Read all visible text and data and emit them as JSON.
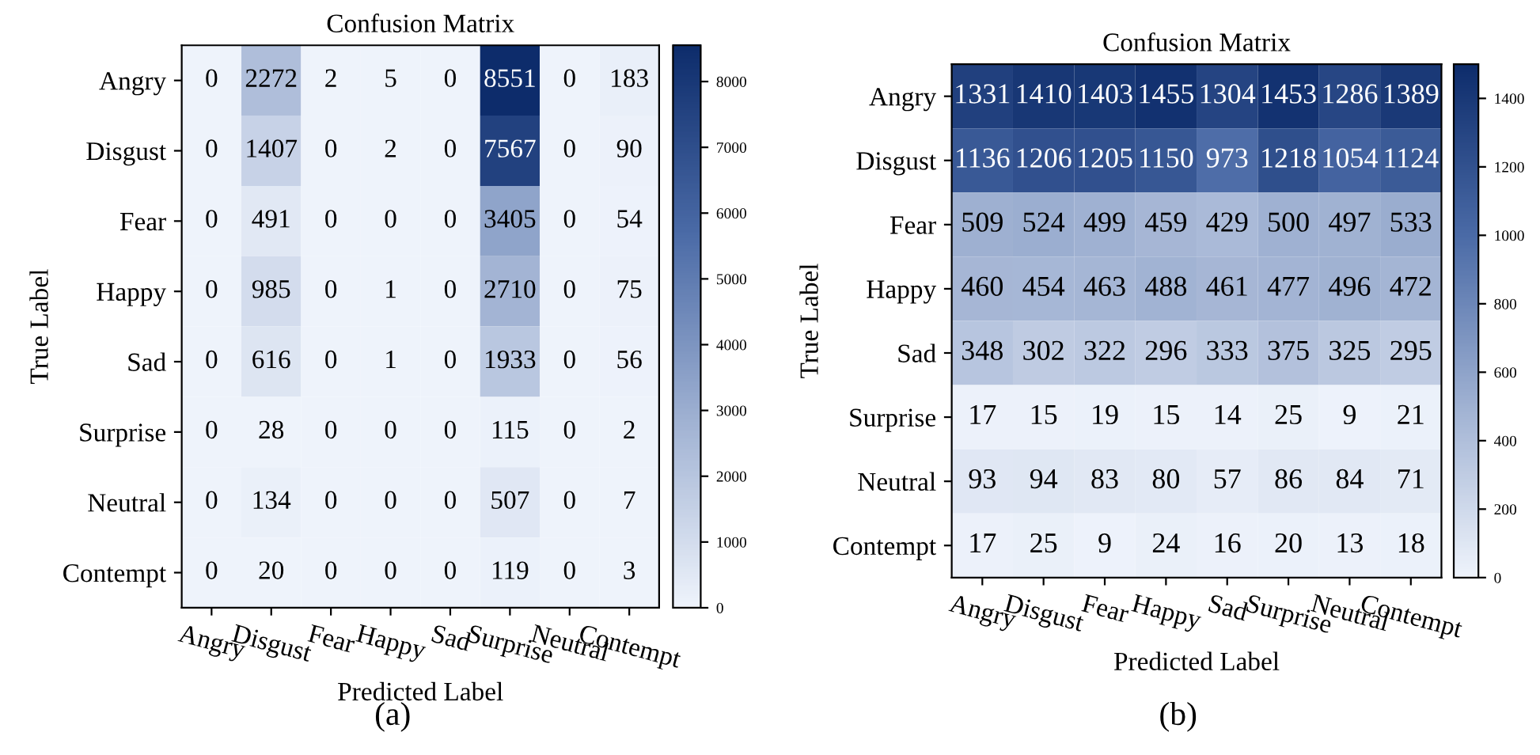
{
  "chart_data": [
    {
      "type": "heatmap",
      "title": "Confusion Matrix",
      "xlabel": "Predicted Label",
      "ylabel": "True Label",
      "annotations": [
        "(a)"
      ],
      "categories": [
        "Angry",
        "Disgust",
        "Fear",
        "Happy",
        "Sad",
        "Surprise",
        "Neutral",
        "Contempt"
      ],
      "y_categories": [
        "Angry",
        "Disgust",
        "Fear",
        "Happy",
        "Sad",
        "Surprise",
        "Neutral",
        "Contempt"
      ],
      "cells": [
        [
          0,
          2272,
          2,
          5,
          0,
          8551,
          0,
          183
        ],
        [
          0,
          1407,
          0,
          2,
          0,
          7567,
          0,
          90
        ],
        [
          0,
          491,
          0,
          0,
          0,
          3405,
          0,
          54
        ],
        [
          0,
          985,
          0,
          1,
          0,
          2710,
          0,
          75
        ],
        [
          0,
          616,
          0,
          1,
          0,
          1933,
          0,
          56
        ],
        [
          0,
          28,
          0,
          0,
          0,
          115,
          0,
          2
        ],
        [
          0,
          134,
          0,
          0,
          0,
          507,
          0,
          7
        ],
        [
          0,
          20,
          0,
          0,
          0,
          119,
          0,
          3
        ]
      ],
      "data_labels": true,
      "clim": [
        0,
        8551
      ],
      "cticks": [
        0,
        1000,
        2000,
        3000,
        4000,
        5000,
        6000,
        7000,
        8000
      ]
    },
    {
      "type": "heatmap",
      "title": "Confusion Matrix",
      "xlabel": "Predicted Label",
      "ylabel": "True Label",
      "annotations": [
        "(b)"
      ],
      "categories": [
        "Angry",
        "Disgust",
        "Fear",
        "Happy",
        "Sad",
        "Surprise",
        "Neutral",
        "Contempt"
      ],
      "y_categories": [
        "Angry",
        "Disgust",
        "Fear",
        "Happy",
        "Sad",
        "Surprise",
        "Neutral",
        "Contempt"
      ],
      "cells": [
        [
          1331,
          1410,
          1403,
          1455,
          1304,
          1453,
          1286,
          1389
        ],
        [
          1136,
          1206,
          1205,
          1150,
          973,
          1218,
          1054,
          1124
        ],
        [
          509,
          524,
          499,
          459,
          429,
          500,
          497,
          533
        ],
        [
          460,
          454,
          463,
          488,
          461,
          477,
          496,
          472
        ],
        [
          348,
          302,
          322,
          296,
          333,
          375,
          325,
          295
        ],
        [
          17,
          15,
          19,
          15,
          14,
          25,
          9,
          21
        ],
        [
          93,
          94,
          83,
          80,
          57,
          86,
          84,
          71
        ],
        [
          17,
          25,
          9,
          24,
          16,
          20,
          13,
          18
        ]
      ],
      "data_labels": true,
      "clim": [
        0,
        1500
      ],
      "cticks": [
        0,
        200,
        400,
        600,
        800,
        1000,
        1200,
        1400
      ]
    }
  ]
}
